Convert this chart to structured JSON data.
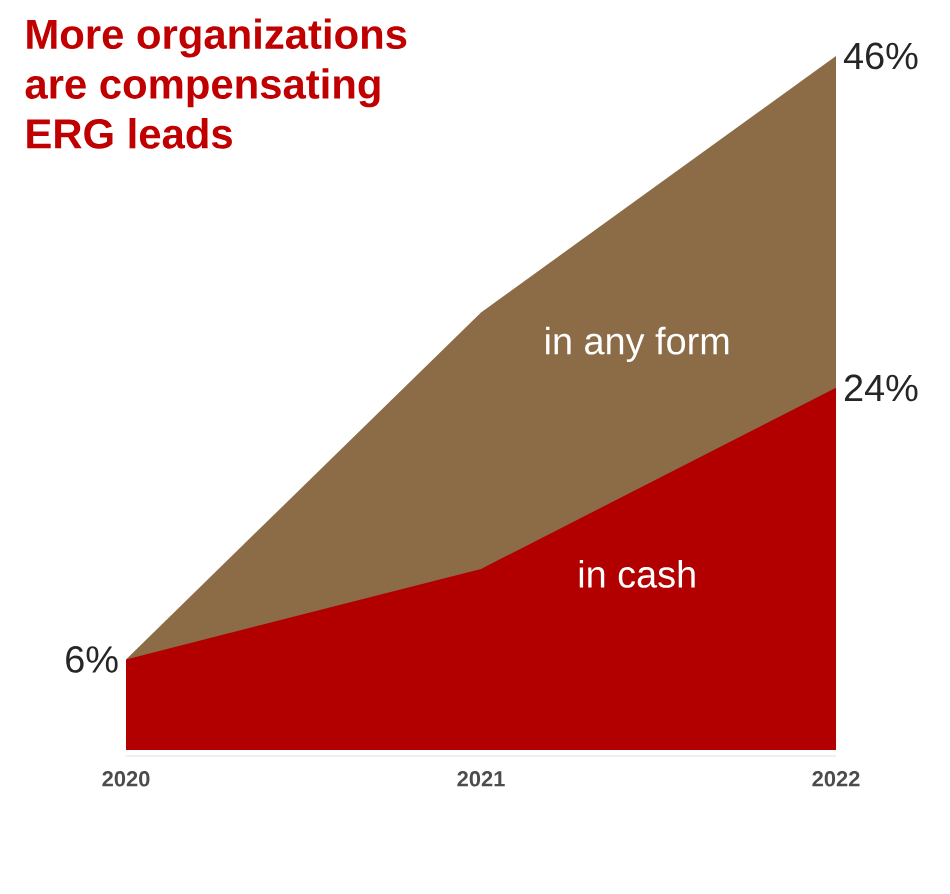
{
  "chart_data": {
    "type": "area",
    "title": "More organizations\nare compensating\nERG leads",
    "categories": [
      "2020",
      "2021",
      "2022"
    ],
    "tick_labels": "x",
    "series": [
      {
        "name": "in any form",
        "color": "#8b6c47",
        "values": [
          6,
          29,
          46
        ],
        "value_labels": [
          "6%",
          null,
          "46%"
        ]
      },
      {
        "name": "in cash",
        "color": "#b20000",
        "values": [
          6,
          12,
          24
        ],
        "value_labels": [
          null,
          null,
          "24%"
        ]
      }
    ]
  }
}
